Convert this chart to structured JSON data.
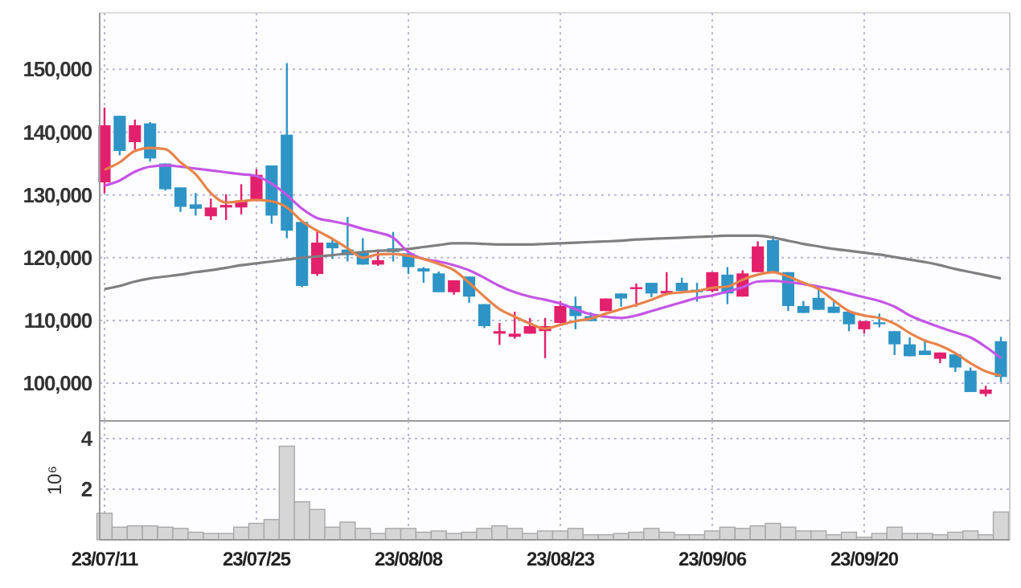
{
  "chart_data": [
    {
      "type": "candlestick",
      "tick_labels": "y",
      "grid": true,
      "categories": [
        null,
        null,
        null,
        null,
        null,
        null,
        null,
        null,
        null,
        null,
        null,
        null,
        null,
        null,
        null,
        null,
        null,
        null,
        null,
        null,
        null,
        null,
        null,
        null,
        null,
        null,
        null,
        null,
        null,
        null,
        null,
        null,
        null,
        null,
        null,
        null,
        null,
        null,
        null,
        null,
        null,
        null,
        null,
        null,
        null,
        null,
        null,
        null,
        null,
        null,
        null,
        null,
        null,
        null,
        null,
        null,
        null,
        null,
        null,
        null
      ],
      "ylim": [
        94000,
        159000
      ],
      "yticks": [
        {
          "value": 100000,
          "label": "100,000"
        },
        {
          "value": 110000,
          "label": "110,000"
        },
        {
          "value": 120000,
          "label": "120,000"
        },
        {
          "value": 130000,
          "label": "130,000"
        },
        {
          "value": 140000,
          "label": "140,000"
        },
        {
          "value": 150000,
          "label": "150,000"
        }
      ],
      "ohlc": [
        [
          132000,
          143900,
          130300,
          141100
        ],
        [
          142600,
          142600,
          136300,
          137000
        ],
        [
          138400,
          142000,
          137200,
          141100
        ],
        [
          141400,
          141600,
          135300,
          135800
        ],
        [
          135000,
          135000,
          130700,
          130900
        ],
        [
          131200,
          131200,
          127300,
          128100
        ],
        [
          128500,
          130300,
          126700,
          127800
        ],
        [
          126600,
          129400,
          126000,
          128000
        ],
        [
          128000,
          130100,
          126000,
          128400
        ],
        [
          128000,
          131700,
          126900,
          129100
        ],
        [
          129100,
          134100,
          129000,
          133200
        ],
        [
          134700,
          134700,
          125400,
          126700
        ],
        [
          139600,
          151000,
          123100,
          124300
        ],
        [
          125700,
          125700,
          115300,
          115500
        ],
        [
          117400,
          124200,
          117100,
          122400
        ],
        [
          122400,
          123200,
          119800,
          121500
        ],
        [
          121300,
          126500,
          119400,
          120400
        ],
        [
          120800,
          123100,
          118900,
          118900
        ],
        [
          118900,
          121300,
          118700,
          119600
        ],
        [
          121500,
          124100,
          119400,
          120900
        ],
        [
          120700,
          120700,
          117400,
          118500
        ],
        [
          118300,
          118500,
          116000,
          117800
        ],
        [
          117500,
          117800,
          114500,
          114500
        ],
        [
          114500,
          116400,
          114100,
          116400
        ],
        [
          117000,
          117000,
          112800,
          113800
        ],
        [
          112600,
          112600,
          108800,
          109100
        ],
        [
          107900,
          109600,
          106100,
          108300
        ],
        [
          107400,
          111400,
          107100,
          107900
        ],
        [
          107900,
          110400,
          107900,
          109100
        ],
        [
          108300,
          110400,
          104000,
          109100
        ],
        [
          109600,
          113100,
          109600,
          112300
        ],
        [
          112300,
          113800,
          108600,
          110700
        ],
        [
          110700,
          111300,
          109900,
          109900
        ],
        [
          111500,
          113500,
          111500,
          113500
        ],
        [
          114300,
          114300,
          112200,
          113500
        ],
        [
          115100,
          115900,
          112200,
          115300
        ],
        [
          116000,
          116000,
          113700,
          114300
        ],
        [
          114300,
          117700,
          114300,
          114700
        ],
        [
          116000,
          116800,
          114700,
          114700
        ],
        [
          114900,
          116000,
          113000,
          114500
        ],
        [
          114700,
          117700,
          114500,
          117700
        ],
        [
          117300,
          118500,
          112600,
          114300
        ],
        [
          113800,
          118000,
          113800,
          117500
        ],
        [
          117700,
          122600,
          117700,
          121800
        ],
        [
          122800,
          123500,
          117700,
          117700
        ],
        [
          117700,
          117700,
          111500,
          112300
        ],
        [
          112300,
          113100,
          111200,
          111200
        ],
        [
          113600,
          115300,
          111700,
          111700
        ],
        [
          112200,
          113100,
          111200,
          111200
        ],
        [
          111400,
          111400,
          108300,
          109400
        ],
        [
          108600,
          109900,
          107900,
          109900
        ],
        [
          109700,
          111100,
          108900,
          109400
        ],
        [
          108300,
          108300,
          104500,
          106200
        ],
        [
          106200,
          107300,
          104300,
          104300
        ],
        [
          105200,
          106800,
          104500,
          104500
        ],
        [
          103900,
          104900,
          103200,
          104900
        ],
        [
          104600,
          104600,
          101800,
          102500
        ],
        [
          102000,
          102500,
          98600,
          98600
        ],
        [
          98300,
          99600,
          97900,
          99000
        ],
        [
          106700,
          107400,
          100200,
          101000
        ]
      ],
      "colors": [
        "#e3206b",
        "#2e94c6",
        "#e3206b",
        "#2e94c6",
        "#2e94c6",
        "#2e94c6",
        "#2e94c6",
        "#e3206b",
        "#e3206b",
        "#e3206b",
        "#e3206b",
        "#2e94c6",
        "#2e94c6",
        "#2e94c6",
        "#e3206b",
        "#2e94c6",
        "#2e94c6",
        "#2e94c6",
        "#e3206b",
        "#2e94c6",
        "#2e94c6",
        "#2e94c6",
        "#2e94c6",
        "#e3206b",
        "#2e94c6",
        "#2e94c6",
        "#e3206b",
        "#e3206b",
        "#e3206b",
        "#e3206b",
        "#e3206b",
        "#2e94c6",
        "#2e94c6",
        "#e3206b",
        "#2e94c6",
        "#e3206b",
        "#2e94c6",
        "#e3206b",
        "#2e94c6",
        "#2e94c6",
        "#e3206b",
        "#2e94c6",
        "#e3206b",
        "#e3206b",
        "#2e94c6",
        "#2e94c6",
        "#2e94c6",
        "#2e94c6",
        "#2e94c6",
        "#2e94c6",
        "#e3206b",
        "#2e94c6",
        "#2e94c6",
        "#2e94c6",
        "#2e94c6",
        "#e3206b",
        "#2e94c6",
        "#2e94c6",
        "#e3206b",
        "#2e94c6"
      ],
      "series": [
        {
          "type": "line",
          "color": "#7f7f7f",
          "values": [
            115000,
            115500,
            116200,
            116700,
            117000,
            117300,
            117700,
            118000,
            118400,
            118800,
            119100,
            119400,
            119700,
            120000,
            120200,
            120400,
            120700,
            120900,
            121100,
            121200,
            121400,
            121700,
            122000,
            122300,
            122300,
            122200,
            122100,
            122100,
            122100,
            122200,
            122300,
            122400,
            122500,
            122600,
            122700,
            122900,
            123000,
            123100,
            123200,
            123300,
            123400,
            123500,
            123500,
            123500,
            123200,
            122700,
            122200,
            121800,
            121400,
            121100,
            120800,
            120500,
            120100,
            119700,
            119300,
            118800,
            118200,
            117700,
            117200,
            116700
          ]
        },
        {
          "type": "line",
          "color": "#c455e6",
          "values": [
            131500,
            132300,
            133700,
            134500,
            134700,
            134500,
            134200,
            133900,
            133600,
            133300,
            133000,
            131800,
            130000,
            127800,
            126300,
            125800,
            125300,
            124600,
            124000,
            123200,
            120900,
            119800,
            119400,
            118800,
            118000,
            116800,
            115500,
            114500,
            113800,
            113300,
            112700,
            111800,
            111000,
            110600,
            110400,
            110800,
            111500,
            112200,
            112900,
            113600,
            114000,
            114600,
            115300,
            116200,
            116300,
            116100,
            115800,
            115400,
            114900,
            114300,
            113700,
            113100,
            112200,
            110800,
            109800,
            108900,
            108100,
            107300,
            105800,
            104000
          ]
        },
        {
          "type": "line",
          "color": "#e8834a",
          "values": [
            134000,
            135200,
            137000,
            137500,
            137300,
            135200,
            133300,
            130300,
            128800,
            129000,
            129200,
            129000,
            128000,
            125800,
            124300,
            123000,
            121500,
            120000,
            120500,
            120600,
            120300,
            119800,
            119000,
            118000,
            116000,
            113800,
            111800,
            110600,
            109500,
            108700,
            109300,
            109900,
            110300,
            111100,
            111800,
            112500,
            113300,
            114200,
            114500,
            114700,
            115200,
            115400,
            116500,
            117300,
            117700,
            117000,
            116000,
            115000,
            113200,
            111500,
            110800,
            110400,
            109500,
            108000,
            106800,
            106000,
            104800,
            103200,
            101900,
            101200
          ]
        }
      ]
    },
    {
      "type": "bar",
      "grid": true,
      "ylabel": "10⁶",
      "color": "#d6d6d6",
      "categories": [
        "23/07/11",
        null,
        null,
        null,
        null,
        null,
        null,
        null,
        null,
        null,
        "23/07/25",
        null,
        null,
        null,
        null,
        null,
        null,
        null,
        null,
        null,
        "23/08/08",
        null,
        null,
        null,
        null,
        null,
        null,
        null,
        null,
        null,
        "23/08/23",
        null,
        null,
        null,
        null,
        null,
        null,
        null,
        null,
        null,
        "23/09/06",
        null,
        null,
        null,
        null,
        null,
        null,
        null,
        null,
        null,
        "23/09/20",
        null,
        null,
        null,
        null,
        null,
        null,
        null,
        null,
        null
      ],
      "ylim": [
        0,
        4.7
      ],
      "yticks": [
        2,
        4
      ],
      "values": [
        1.05,
        0.5,
        0.55,
        0.55,
        0.5,
        0.45,
        0.3,
        0.25,
        0.25,
        0.5,
        0.65,
        0.8,
        3.7,
        1.5,
        1.2,
        0.5,
        0.7,
        0.45,
        0.25,
        0.45,
        0.45,
        0.3,
        0.35,
        0.25,
        0.3,
        0.45,
        0.55,
        0.45,
        0.25,
        0.35,
        0.35,
        0.45,
        0.2,
        0.2,
        0.25,
        0.3,
        0.45,
        0.3,
        0.2,
        0.2,
        0.35,
        0.5,
        0.45,
        0.55,
        0.65,
        0.5,
        0.35,
        0.35,
        0.2,
        0.3,
        0.1,
        0.25,
        0.5,
        0.25,
        0.25,
        0.2,
        0.3,
        0.35,
        0.2,
        1.1
      ]
    }
  ]
}
